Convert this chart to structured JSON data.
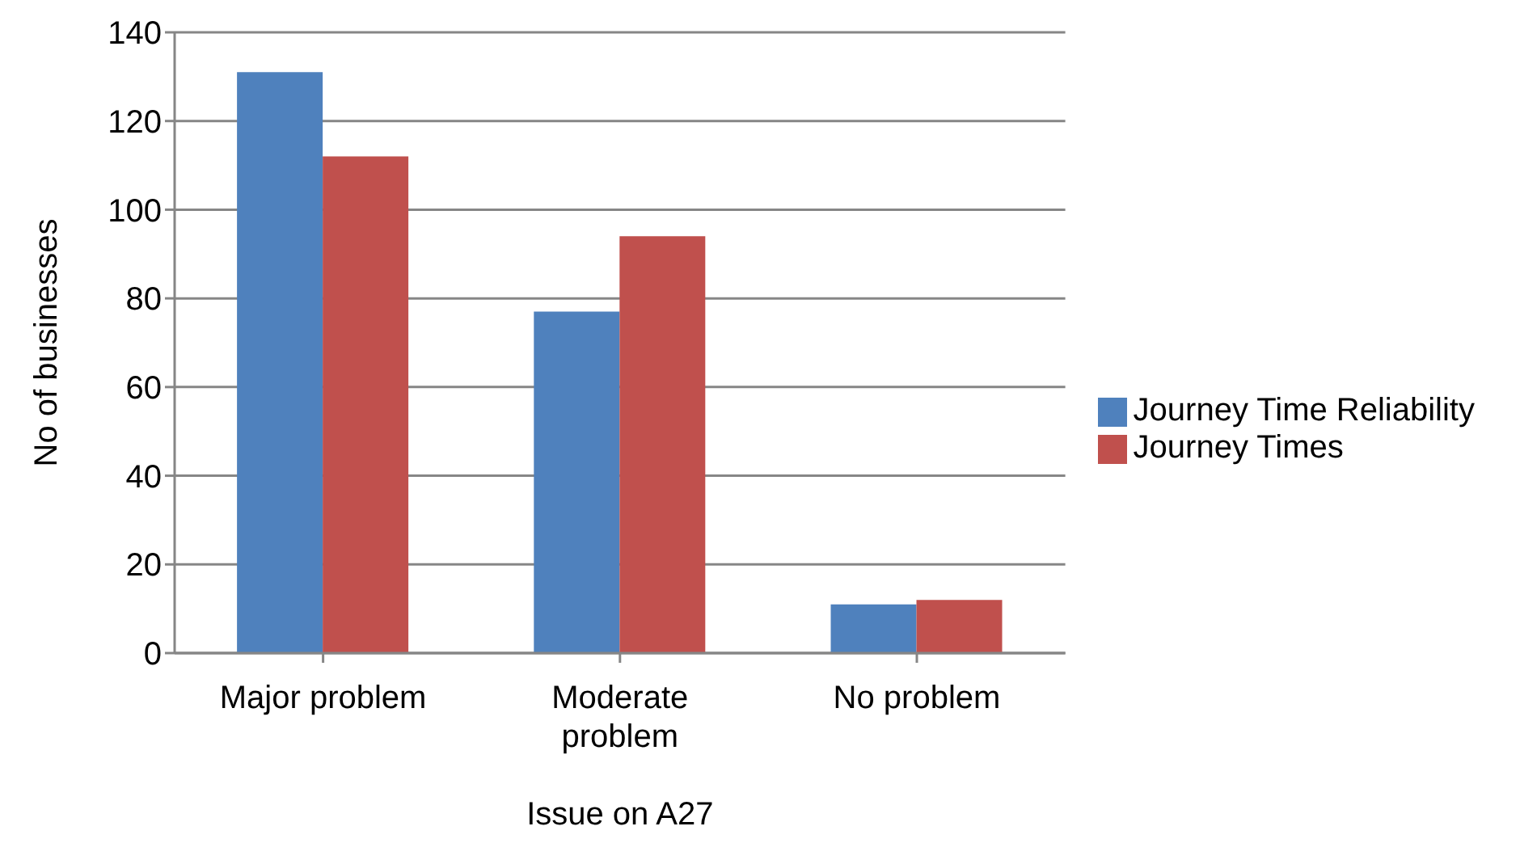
{
  "chart_data": {
    "type": "bar",
    "xlabel": "Issue on A27",
    "ylabel": "No of businesses",
    "categories": [
      "Major problem",
      "Moderate problem",
      "No problem"
    ],
    "series": [
      {
        "name": "Journey Time Reliability",
        "color": "#4f81bd",
        "values": [
          131,
          77,
          11
        ]
      },
      {
        "name": "Journey Times",
        "color": "#c0504d",
        "values": [
          112,
          94,
          12
        ]
      }
    ],
    "ylim": [
      0,
      140
    ],
    "yticks": [
      0,
      20,
      40,
      60,
      80,
      100,
      120,
      140
    ],
    "grid": "y",
    "legend": "right"
  }
}
